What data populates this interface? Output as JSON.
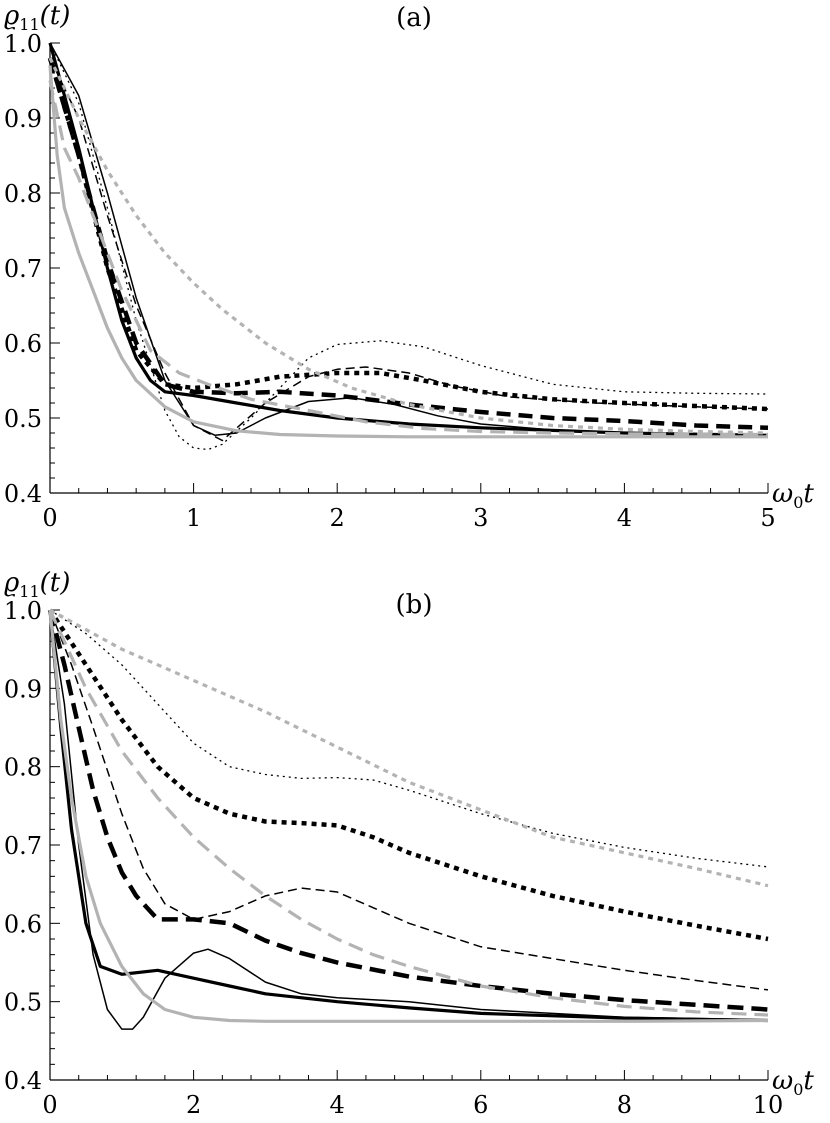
{
  "chart_data": [
    {
      "type": "line",
      "title": "(a)",
      "ylabel_main": "ϱ",
      "ylabel_sub": "11",
      "ylabel_arg": "(t)",
      "xlabel_main": "ω",
      "xlabel_sub": "0",
      "xlabel_arg": "t",
      "xlim": [
        0,
        5
      ],
      "ylim": [
        0.4,
        1.0
      ],
      "xticks": [
        "0",
        "1",
        "2",
        "3",
        "4",
        "5"
      ],
      "yticks": [
        "0.4",
        "0.5",
        "0.6",
        "0.7",
        "0.8",
        "0.9",
        "1.0"
      ],
      "grid": false,
      "series": [
        {
          "color": "#000000",
          "width": 3.2,
          "dash": "",
          "x": [
            0,
            0.1,
            0.2,
            0.3,
            0.4,
            0.5,
            0.6,
            0.7,
            0.8,
            1.0,
            1.3,
            1.6,
            2.0,
            2.5,
            3.0,
            4.0,
            5.0
          ],
          "y": [
            1.0,
            0.93,
            0.86,
            0.78,
            0.7,
            0.63,
            0.58,
            0.55,
            0.535,
            0.53,
            0.52,
            0.51,
            0.5,
            0.492,
            0.487,
            0.48,
            0.477
          ]
        },
        {
          "color": "#000000",
          "width": 1.5,
          "dash": "",
          "x": [
            0,
            0.2,
            0.4,
            0.6,
            0.8,
            1.0,
            1.15,
            1.3,
            1.5,
            1.8,
            2.1,
            2.4,
            2.7,
            3.0,
            3.5,
            4.0,
            5.0
          ],
          "y": [
            1.0,
            0.93,
            0.8,
            0.66,
            0.55,
            0.49,
            0.477,
            0.48,
            0.5,
            0.522,
            0.527,
            0.518,
            0.503,
            0.492,
            0.484,
            0.48,
            0.477
          ]
        },
        {
          "color": "#000000",
          "width": 1.3,
          "dash": "2 4",
          "x": [
            0,
            0.2,
            0.4,
            0.6,
            0.8,
            0.9,
            1.0,
            1.1,
            1.2,
            1.4,
            1.6,
            1.8,
            2.0,
            2.3,
            2.6,
            3.0,
            3.5,
            4.0,
            4.5,
            5.0
          ],
          "y": [
            1.0,
            0.92,
            0.78,
            0.63,
            0.51,
            0.475,
            0.46,
            0.458,
            0.465,
            0.5,
            0.54,
            0.58,
            0.598,
            0.603,
            0.595,
            0.57,
            0.545,
            0.535,
            0.533,
            0.532
          ]
        },
        {
          "color": "#000000",
          "width": 1.5,
          "dash": "9 5",
          "x": [
            0,
            0.2,
            0.4,
            0.6,
            0.8,
            1.0,
            1.2,
            1.5,
            1.8,
            2.0,
            2.2,
            2.5,
            2.8,
            3.2,
            3.8,
            4.5,
            5.0
          ],
          "y": [
            0.98,
            0.9,
            0.77,
            0.65,
            0.56,
            0.49,
            0.47,
            0.52,
            0.555,
            0.565,
            0.568,
            0.56,
            0.543,
            0.528,
            0.52,
            0.515,
            0.512
          ]
        },
        {
          "color": "#000000",
          "width": 4.5,
          "dash": "14 8",
          "x": [
            0,
            0.2,
            0.4,
            0.6,
            0.8,
            1.0,
            1.3,
            1.6,
            2.0,
            2.5,
            3.0,
            3.5,
            4.0,
            4.5,
            5.0
          ],
          "y": [
            0.98,
            0.85,
            0.71,
            0.6,
            0.545,
            0.535,
            0.533,
            0.535,
            0.53,
            0.518,
            0.508,
            0.5,
            0.496,
            0.49,
            0.487
          ]
        },
        {
          "color": "#000000",
          "width": 4.5,
          "dash": "5 5",
          "x": [
            0,
            0.2,
            0.4,
            0.6,
            0.8,
            1.0,
            1.3,
            1.6,
            2.0,
            2.3,
            2.6,
            3.0,
            3.5,
            4.0,
            4.5,
            5.0
          ],
          "y": [
            0.98,
            0.85,
            0.7,
            0.59,
            0.545,
            0.54,
            0.545,
            0.555,
            0.56,
            0.56,
            0.55,
            0.535,
            0.525,
            0.52,
            0.516,
            0.512
          ]
        },
        {
          "color": "#b3b3b3",
          "width": 3.2,
          "dash": "",
          "x": [
            0,
            0.05,
            0.1,
            0.2,
            0.3,
            0.4,
            0.5,
            0.6,
            0.8,
            1.0,
            1.3,
            1.6,
            2.0,
            2.5,
            3.0,
            4.0,
            5.0
          ],
          "y": [
            0.97,
            0.85,
            0.78,
            0.72,
            0.67,
            0.62,
            0.58,
            0.55,
            0.515,
            0.495,
            0.483,
            0.478,
            0.476,
            0.475,
            0.475,
            0.475,
            0.475
          ]
        },
        {
          "color": "#b3b3b3",
          "width": 3.2,
          "dash": "15 8",
          "x": [
            0,
            0.1,
            0.2,
            0.3,
            0.4,
            0.5,
            0.6,
            0.7,
            0.9,
            1.1,
            1.4,
            1.8,
            2.2,
            2.6,
            3.0,
            3.5,
            4.0,
            5.0
          ],
          "y": [
            0.95,
            0.86,
            0.82,
            0.77,
            0.72,
            0.67,
            0.63,
            0.59,
            0.56,
            0.545,
            0.525,
            0.51,
            0.495,
            0.486,
            0.482,
            0.48,
            0.479,
            0.478
          ]
        },
        {
          "color": "#b3b3b3",
          "width": 3.2,
          "dash": "5 5",
          "x": [
            0,
            0.2,
            0.4,
            0.6,
            0.8,
            1.0,
            1.2,
            1.5,
            1.8,
            2.1,
            2.5,
            3.0,
            3.5,
            4.0,
            4.5,
            5.0
          ],
          "y": [
            0.98,
            0.9,
            0.83,
            0.77,
            0.72,
            0.68,
            0.645,
            0.6,
            0.565,
            0.54,
            0.518,
            0.5,
            0.49,
            0.485,
            0.482,
            0.48
          ]
        }
      ]
    },
    {
      "type": "line",
      "title": "(b)",
      "ylabel_main": "ϱ",
      "ylabel_sub": "11",
      "ylabel_arg": "(t)",
      "xlabel_main": "ω",
      "xlabel_sub": "0",
      "xlabel_arg": "t",
      "xlim": [
        0,
        10
      ],
      "ylim": [
        0.4,
        1.0
      ],
      "xticks": [
        "0",
        "2",
        "4",
        "6",
        "8",
        "10"
      ],
      "yticks": [
        "0.4",
        "0.5",
        "0.6",
        "0.7",
        "0.8",
        "0.9",
        "1.0"
      ],
      "grid": false,
      "series": [
        {
          "color": "#000000",
          "width": 3.2,
          "dash": "",
          "x": [
            0,
            0.15,
            0.3,
            0.5,
            0.7,
            1.0,
            1.5,
            2.0,
            2.5,
            3.0,
            4.0,
            5.0,
            6.0,
            8.0,
            10.0
          ],
          "y": [
            1.0,
            0.85,
            0.72,
            0.6,
            0.545,
            0.535,
            0.54,
            0.53,
            0.52,
            0.51,
            0.5,
            0.492,
            0.485,
            0.479,
            0.476
          ]
        },
        {
          "color": "#000000",
          "width": 1.5,
          "dash": "",
          "x": [
            0,
            0.2,
            0.4,
            0.6,
            0.8,
            1.0,
            1.15,
            1.3,
            1.6,
            2.0,
            2.2,
            2.5,
            3.0,
            3.5,
            4.0,
            5.0,
            6.0,
            8.0,
            10.0
          ],
          "y": [
            1.0,
            0.88,
            0.7,
            0.56,
            0.49,
            0.465,
            0.465,
            0.48,
            0.53,
            0.562,
            0.567,
            0.555,
            0.525,
            0.51,
            0.505,
            0.5,
            0.49,
            0.48,
            0.477
          ]
        },
        {
          "color": "#000000",
          "width": 1.3,
          "dash": "2 4",
          "x": [
            0,
            0.5,
            1.0,
            1.5,
            2.0,
            2.5,
            3.0,
            3.5,
            4.0,
            4.5,
            5.0,
            6.0,
            7.0,
            8.0,
            9.0,
            10.0
          ],
          "y": [
            1.0,
            0.97,
            0.93,
            0.88,
            0.83,
            0.8,
            0.79,
            0.785,
            0.786,
            0.783,
            0.77,
            0.74,
            0.715,
            0.697,
            0.683,
            0.672
          ]
        },
        {
          "color": "#000000",
          "width": 1.5,
          "dash": "9 5",
          "x": [
            0,
            0.3,
            0.6,
            1.0,
            1.3,
            1.6,
            2.0,
            2.5,
            3.0,
            3.5,
            4.0,
            4.5,
            5.0,
            6.0,
            7.0,
            8.0,
            9.0,
            10.0
          ],
          "y": [
            1.0,
            0.93,
            0.85,
            0.74,
            0.67,
            0.625,
            0.605,
            0.615,
            0.635,
            0.645,
            0.64,
            0.62,
            0.6,
            0.57,
            0.555,
            0.54,
            0.527,
            0.515
          ]
        },
        {
          "color": "#000000",
          "width": 4.5,
          "dash": "16 8",
          "x": [
            0,
            0.2,
            0.4,
            0.6,
            0.8,
            1.0,
            1.2,
            1.5,
            2.0,
            2.5,
            3.0,
            3.5,
            4.0,
            5.0,
            6.0,
            7.0,
            8.0,
            9.0,
            10.0
          ],
          "y": [
            1.0,
            0.93,
            0.85,
            0.77,
            0.71,
            0.665,
            0.635,
            0.605,
            0.605,
            0.6,
            0.578,
            0.562,
            0.55,
            0.532,
            0.52,
            0.51,
            0.502,
            0.496,
            0.49
          ]
        },
        {
          "color": "#000000",
          "width": 4.5,
          "dash": "5 5",
          "x": [
            0,
            0.5,
            1.0,
            1.5,
            2.0,
            2.5,
            3.0,
            3.5,
            4.0,
            4.5,
            5.0,
            6.0,
            7.0,
            8.0,
            9.0,
            10.0
          ],
          "y": [
            1.0,
            0.93,
            0.86,
            0.8,
            0.76,
            0.74,
            0.73,
            0.728,
            0.725,
            0.71,
            0.69,
            0.66,
            0.635,
            0.615,
            0.597,
            0.58
          ]
        },
        {
          "color": "#b3b3b3",
          "width": 3.2,
          "dash": "",
          "x": [
            0,
            0.15,
            0.3,
            0.5,
            0.7,
            1.0,
            1.3,
            1.6,
            2.0,
            2.5,
            3.0,
            4.0,
            5.0,
            6.0,
            8.0,
            10.0
          ],
          "y": [
            1.0,
            0.86,
            0.76,
            0.66,
            0.6,
            0.545,
            0.51,
            0.49,
            0.48,
            0.476,
            0.475,
            0.475,
            0.475,
            0.475,
            0.475,
            0.476
          ]
        },
        {
          "color": "#b3b3b3",
          "width": 3.2,
          "dash": "15 8",
          "x": [
            0,
            0.5,
            1.0,
            1.5,
            2.0,
            2.5,
            3.0,
            3.5,
            4.0,
            4.5,
            5.0,
            6.0,
            7.0,
            8.0,
            9.0,
            10.0
          ],
          "y": [
            1.0,
            0.9,
            0.82,
            0.76,
            0.71,
            0.67,
            0.635,
            0.605,
            0.58,
            0.56,
            0.545,
            0.52,
            0.505,
            0.494,
            0.487,
            0.483
          ]
        },
        {
          "color": "#b3b3b3",
          "width": 3.2,
          "dash": "5 5",
          "x": [
            0,
            1.0,
            2.0,
            3.0,
            4.0,
            5.0,
            6.0,
            7.0,
            8.0,
            9.0,
            10.0
          ],
          "y": [
            1.0,
            0.95,
            0.91,
            0.87,
            0.825,
            0.78,
            0.745,
            0.71,
            0.69,
            0.67,
            0.648
          ]
        }
      ]
    }
  ]
}
